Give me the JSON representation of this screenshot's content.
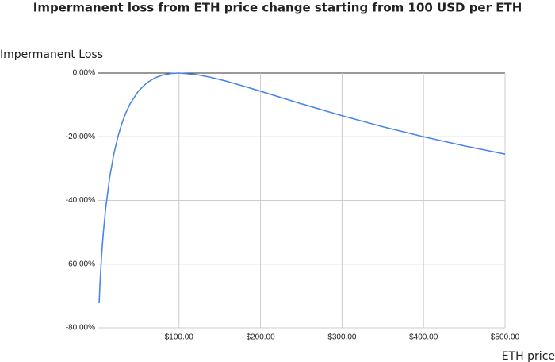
{
  "chart_data": {
    "type": "line",
    "title": "Impermanent loss from ETH price change starting from 100 USD per ETH",
    "y_label": "Impermanent Loss",
    "x_label": "ETH price",
    "x": [
      2,
      3,
      5,
      7,
      10,
      15,
      20,
      25,
      30,
      35,
      40,
      50,
      60,
      70,
      80,
      90,
      100,
      120,
      140,
      160,
      180,
      200,
      250,
      300,
      350,
      400,
      450,
      500
    ],
    "series": [
      {
        "name": "Impermanent Loss",
        "color": "#4a86e8",
        "values": [
          -72.27,
          -66.37,
          -57.41,
          -50.54,
          -42.5,
          -32.64,
          -25.46,
          -20.0,
          -15.73,
          -12.35,
          -9.65,
          -5.72,
          -3.18,
          -1.57,
          -0.62,
          -0.14,
          0,
          -0.41,
          -1.4,
          -2.7,
          -4.17,
          -5.72,
          -9.65,
          -13.4,
          -16.85,
          -20.0,
          -22.86,
          -25.46
        ]
      }
    ],
    "xlim": [
      0,
      500
    ],
    "ylim": [
      -80,
      0
    ],
    "xticks": [
      {
        "value": 100,
        "label": "$100.00"
      },
      {
        "value": 200,
        "label": "$200.00"
      },
      {
        "value": 300,
        "label": "$300.00"
      },
      {
        "value": 400,
        "label": "$400.00"
      },
      {
        "value": 500,
        "label": "$500.00"
      }
    ],
    "yticks": [
      {
        "value": 0,
        "label": "0.00%"
      },
      {
        "value": -20,
        "label": "-20.00%"
      },
      {
        "value": -40,
        "label": "-40.00%"
      },
      {
        "value": -60,
        "label": "-60.00%"
      },
      {
        "value": -80,
        "label": "-80.00%"
      }
    ],
    "grid": true
  }
}
